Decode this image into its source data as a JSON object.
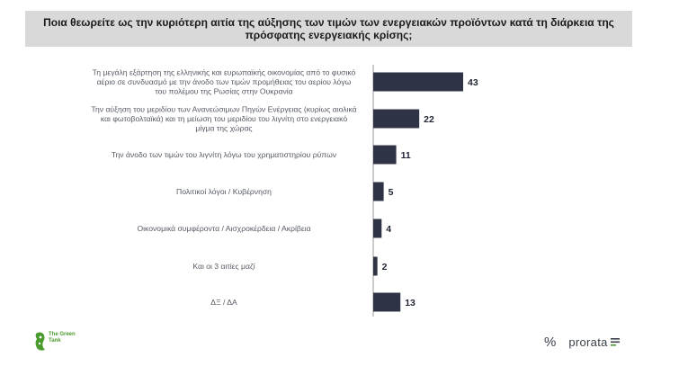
{
  "header": {
    "title": "Ποια θεωρείτε ως την κυριότερη αιτία της αύξησης των τιμών των ενεργειακών προϊόντων κατά τη διάρκεια της πρόσφατης ενεργειακής κρίσης;"
  },
  "chart_data": {
    "type": "bar",
    "orientation": "horizontal",
    "categories": [
      "Τη μεγάλη εξάρτηση της ελληνικής και ευρωπαϊκής οικονομίας από το φυσικό αέριο σε συνδυασμό με την άνοδο των τιμών προμήθειας του αερίου λόγω του πολέμου της Ρωσίας στην Ουκρανία",
      "Την αύξηση του μεριδίου των Ανανεώσιμων Πηγών Ενέργειας (κυρίως αιολικά και φωτοβολταϊκά) και τη μείωση του μεριδίου του λιγνίτη στο ενεργειακό μίγμα της χώρας",
      "Την άνοδο των τιμών του λιγνίτη λόγω του χρηματιστηρίου ρύπων",
      "Πολιτικοί λόγοι / Κυβέρνηση",
      "Οικονομικά συμφέροντα / Αισχροκέρδεια / Ακρίβεια",
      "Και οι 3 αιτίες μαζί",
      "ΔΞ / ΔΑ"
    ],
    "category_lines": [
      [
        "Τη μεγάλη εξάρτηση της ελληνικής και ευρωπαϊκής οικονομίας από το φυσικό",
        "αέριο σε συνδυασμό με την άνοδο των τιμών προμήθειας του αερίου λόγω",
        "του πολέμου της Ρωσίας στην Ουκρανία"
      ],
      [
        "Την αύξηση του μεριδίου των Ανανεώσιμων Πηγών Ενέργειας (κυρίως αιολικά",
        "και φωτοβολταϊκά) και τη μείωση του μεριδίου του λιγνίτη στο ενεργειακό",
        "μίγμα της χώρας"
      ],
      [
        "Την άνοδο των τιμών του λιγνίτη λόγω του χρηματιστηρίου ρύπων"
      ],
      [
        "Πολιτικοί λόγοι / Κυβέρνηση"
      ],
      [
        "Οικονομικά συμφέροντα / Αισχροκέρδεια / Ακρίβεια"
      ],
      [
        "Και οι 3 αιτίες μαζί"
      ],
      [
        "ΔΞ / ΔΑ"
      ]
    ],
    "values": [
      43,
      22,
      11,
      5,
      4,
      2,
      13
    ],
    "xlim": [
      0,
      43
    ],
    "bar_color": "#2e3445",
    "axis_line_color": "#9a9a9a",
    "grid": false,
    "legend": "none"
  },
  "logos": {
    "green_tank": "The Green Tank",
    "green_color": "#4a9a2d",
    "prorata_symbol": "%",
    "prorata_word": "prorata"
  }
}
